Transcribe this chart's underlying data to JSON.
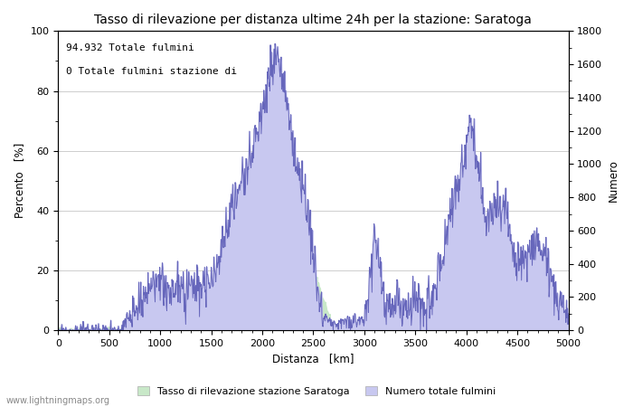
{
  "title": "Tasso di rilevazione per distanza ultime 24h per la stazione: Saratoga",
  "xlabel": "Distanza   [km]",
  "ylabel_left": "Percento   [%]",
  "ylabel_right": "Numero",
  "annotation_line1": "94.932 Totale fulmini",
  "annotation_line2": "0 Totale fulmini stazione di",
  "legend_label1": "Tasso di rilevazione stazione Saratoga",
  "legend_label2": "Numero totale fulmini",
  "watermark": "www.lightningmaps.org",
  "xlim": [
    0,
    5000
  ],
  "ylim_left": [
    0,
    100
  ],
  "ylim_right": [
    0,
    1800
  ],
  "xticks": [
    0,
    500,
    1000,
    1500,
    2000,
    2500,
    3000,
    3500,
    4000,
    4500,
    5000
  ],
  "yticks_left": [
    0,
    20,
    40,
    60,
    80,
    100
  ],
  "yticks_right": [
    0,
    200,
    400,
    600,
    800,
    1000,
    1200,
    1400,
    1600,
    1800
  ],
  "fill_color_blue": "#c8c8f0",
  "fill_color_green": "#c8e8c8",
  "line_color_blue": "#6666bb",
  "bg_color": "#ffffff",
  "grid_color": "#bbbbbb",
  "title_fontsize": 10,
  "label_fontsize": 8.5,
  "tick_fontsize": 8
}
